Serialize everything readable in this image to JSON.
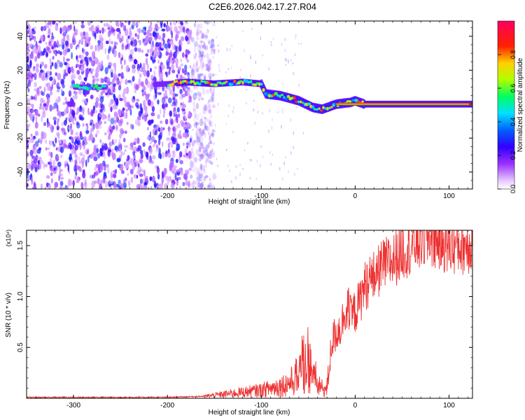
{
  "title": "C2E6.2026.042.17.27.R04",
  "chart_data": [
    {
      "type": "heatmap",
      "xlabel": "Height of straight line (km)",
      "ylabel": "Frequency (Hz)",
      "xlim": [
        -350,
        125
      ],
      "ylim": [
        -50,
        49
      ],
      "x_ticks": [
        -300,
        -200,
        -100,
        0,
        100
      ],
      "y_ticks": [
        -40,
        -20,
        0,
        20,
        40
      ],
      "colorbar": {
        "label": "Normalized spectral amplitude",
        "range": [
          0,
          1
        ],
        "ticks": [
          0.0,
          0.2,
          0.4,
          0.6,
          0.8
        ],
        "colors": [
          "#ffffff",
          "#e6c8ff",
          "#9b30ff",
          "#3000ff",
          "#0060ff",
          "#00e0ff",
          "#00ff60",
          "#b0ff00",
          "#ffd000",
          "#ff2000",
          "#ff0060"
        ]
      },
      "noise_region": {
        "x": [
          -350,
          -175
        ],
        "y": [
          -50,
          49
        ],
        "amplitude": 0.2
      },
      "ridge": [
        {
          "x": -300,
          "y": 10
        },
        {
          "x": -270,
          "y": 10
        },
        {
          "x": -200,
          "y": 12
        },
        {
          "x": -180,
          "y": 13
        },
        {
          "x": -150,
          "y": 12
        },
        {
          "x": -120,
          "y": 13
        },
        {
          "x": -100,
          "y": 12
        },
        {
          "x": -95,
          "y": 6
        },
        {
          "x": -80,
          "y": 5
        },
        {
          "x": -60,
          "y": 2
        },
        {
          "x": -45,
          "y": -2
        },
        {
          "x": -35,
          "y": -3
        },
        {
          "x": -20,
          "y": 0
        },
        {
          "x": -5,
          "y": 1
        },
        {
          "x": 0,
          "y": 2
        },
        {
          "x": 10,
          "y": 0
        },
        {
          "x": 125,
          "y": 0
        }
      ]
    },
    {
      "type": "line",
      "xlabel": "Height of straight line (km)",
      "ylabel": "SNR (10 * v/v)",
      "multiplier": "(x10⁴)",
      "xlim": [
        -350,
        125
      ],
      "ylim": [
        0,
        1.65
      ],
      "x_ticks": [
        -300,
        -200,
        -100,
        0,
        100
      ],
      "y_ticks": [
        0.5,
        1.0,
        1.5
      ],
      "series": [
        {
          "color": "#ee3333",
          "x": [
            -350,
            -300,
            -250,
            -200,
            -160,
            -140,
            -120,
            -100,
            -90,
            -80,
            -70,
            -60,
            -55,
            -50,
            -45,
            -40,
            -35,
            -30,
            -25,
            -20,
            -15,
            -10,
            -5,
            0,
            5,
            10,
            20,
            30,
            40,
            50,
            60,
            70,
            80,
            90,
            100,
            110,
            125
          ],
          "values": [
            0.01,
            0.01,
            0.01,
            0.01,
            0.02,
            0.04,
            0.06,
            0.08,
            0.1,
            0.12,
            0.15,
            0.22,
            0.35,
            0.4,
            0.2,
            0.12,
            0.1,
            0.08,
            0.55,
            0.65,
            0.7,
            0.9,
            0.8,
            0.85,
            0.95,
            1.1,
            1.2,
            1.3,
            1.35,
            1.45,
            1.5,
            1.55,
            1.58,
            1.55,
            1.5,
            1.5,
            1.52
          ]
        }
      ]
    }
  ]
}
